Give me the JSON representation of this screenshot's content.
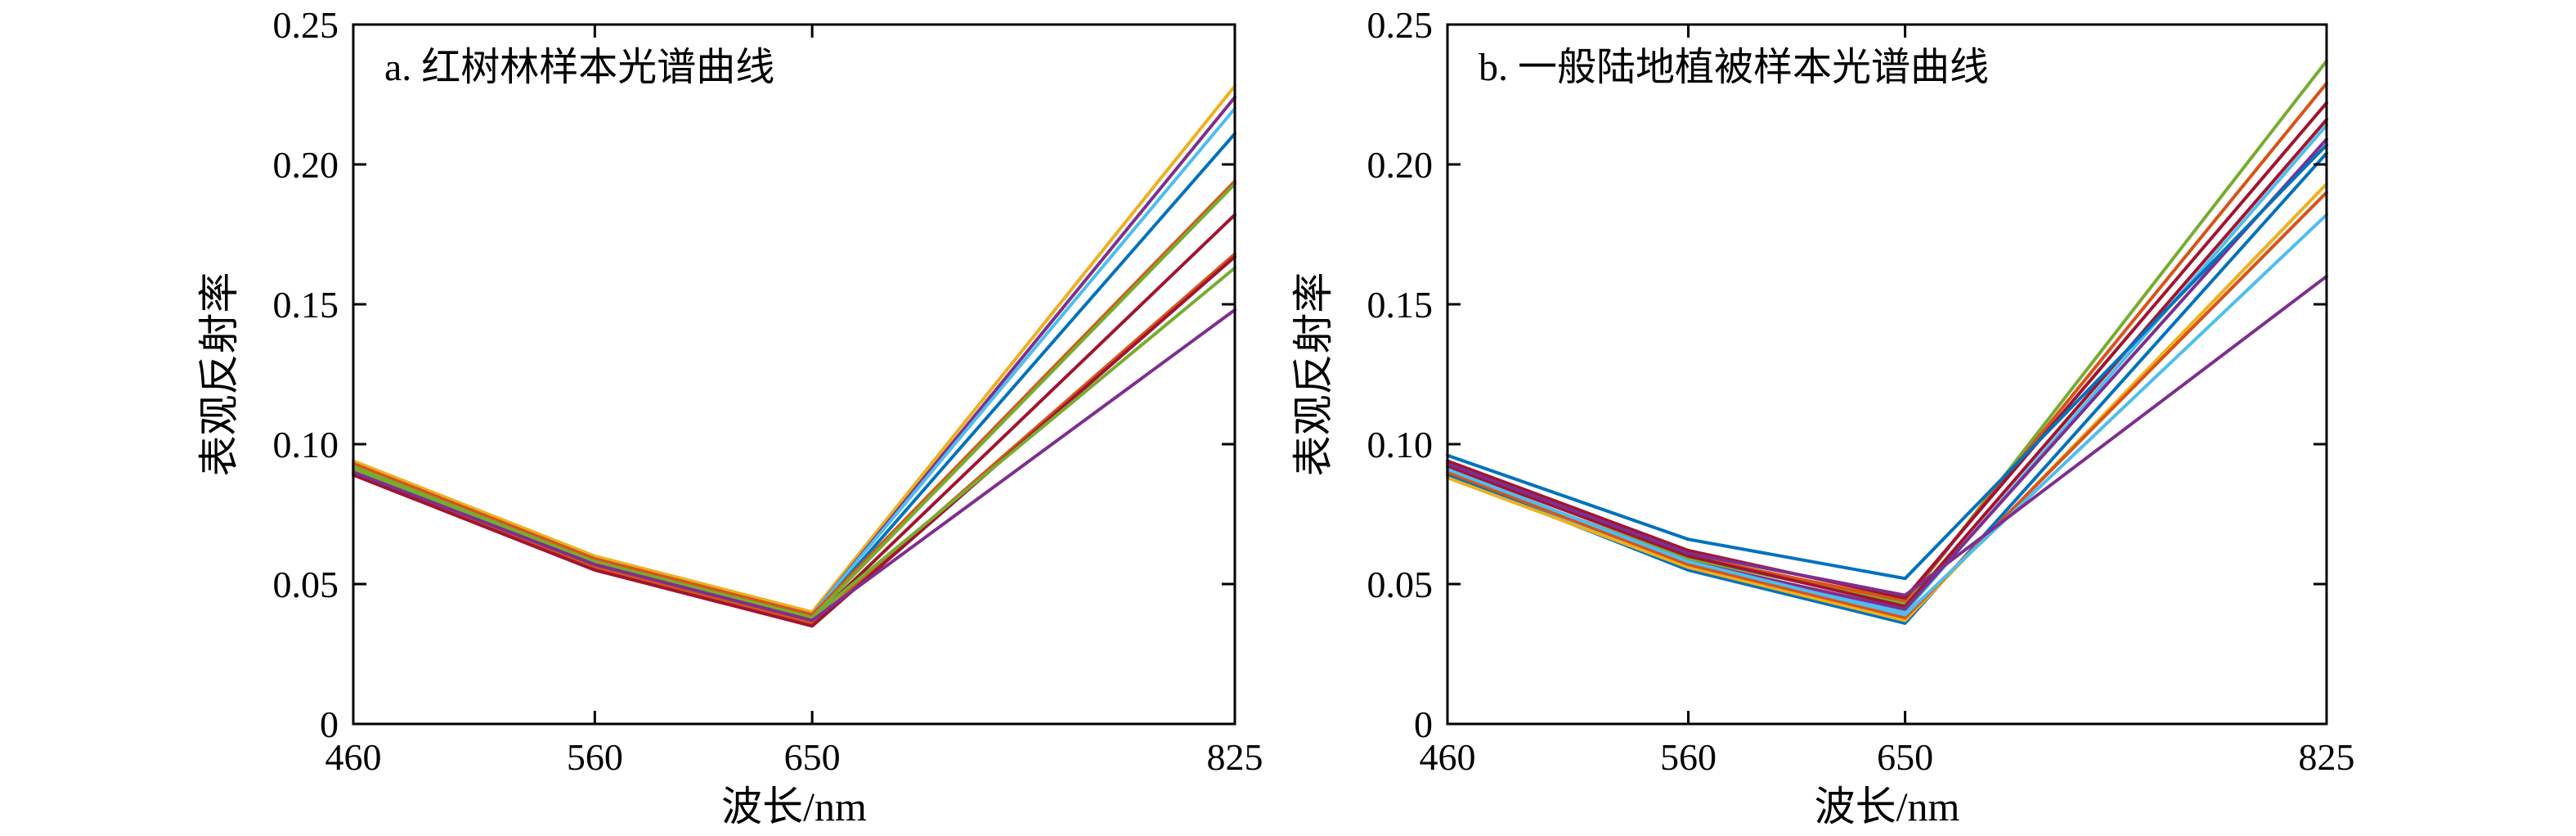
{
  "chart_data": [
    {
      "type": "line",
      "title": "a. 红树林样本光谱曲线",
      "xlabel": "波长/nm",
      "ylabel": "表观反射率",
      "x": [
        460,
        560,
        650,
        825
      ],
      "xticks": [
        "460",
        "560",
        "650",
        "825"
      ],
      "ylim": [
        0,
        0.25
      ],
      "yticks": [
        "0",
        "0.05",
        "0.10",
        "0.15",
        "0.20",
        "0.25"
      ],
      "grid": false,
      "series": [
        {
          "color": "#EDB120",
          "values": [
            0.094,
            0.06,
            0.04,
            0.228
          ]
        },
        {
          "color": "#7E2F8E",
          "values": [
            0.093,
            0.059,
            0.039,
            0.224
          ]
        },
        {
          "color": "#4DBEEE",
          "values": [
            0.092,
            0.058,
            0.039,
            0.22
          ]
        },
        {
          "color": "#0072BD",
          "values": [
            0.092,
            0.058,
            0.038,
            0.211
          ]
        },
        {
          "color": "#D95319",
          "values": [
            0.093,
            0.059,
            0.039,
            0.194
          ]
        },
        {
          "color": "#77AC30",
          "values": [
            0.092,
            0.058,
            0.038,
            0.193
          ]
        },
        {
          "color": "#A2142F",
          "values": [
            0.091,
            0.057,
            0.037,
            0.182
          ]
        },
        {
          "color": "#D95319",
          "values": [
            0.09,
            0.056,
            0.036,
            0.168
          ]
        },
        {
          "color": "#A2142F",
          "values": [
            0.089,
            0.055,
            0.035,
            0.167
          ]
        },
        {
          "color": "#77AC30",
          "values": [
            0.091,
            0.058,
            0.038,
            0.163
          ]
        },
        {
          "color": "#7E2F8E",
          "values": [
            0.09,
            0.057,
            0.037,
            0.148
          ]
        }
      ]
    },
    {
      "type": "line",
      "title": "b. 一般陆地植被样本光谱曲线",
      "xlabel": "波长/nm",
      "ylabel": "表观反射率",
      "x": [
        460,
        560,
        650,
        825
      ],
      "xticks": [
        "460",
        "560",
        "650",
        "825"
      ],
      "ylim": [
        0,
        0.25
      ],
      "yticks": [
        "0",
        "0.05",
        "0.10",
        "0.15",
        "0.20",
        "0.25"
      ],
      "grid": false,
      "series": [
        {
          "color": "#77AC30",
          "values": [
            0.09,
            0.059,
            0.043,
            0.237
          ]
        },
        {
          "color": "#D95319",
          "values": [
            0.093,
            0.06,
            0.044,
            0.229
          ]
        },
        {
          "color": "#A2142F",
          "values": [
            0.094,
            0.062,
            0.045,
            0.222
          ]
        },
        {
          "color": "#A2142F",
          "values": [
            0.092,
            0.06,
            0.042,
            0.216
          ]
        },
        {
          "color": "#4DBEEE",
          "values": [
            0.089,
            0.057,
            0.04,
            0.214
          ]
        },
        {
          "color": "#7E2F8E",
          "values": [
            0.091,
            0.058,
            0.041,
            0.209
          ]
        },
        {
          "color": "#0072BD",
          "values": [
            0.096,
            0.066,
            0.052,
            0.207
          ]
        },
        {
          "color": "#0072BD",
          "values": [
            0.089,
            0.055,
            0.036,
            0.204
          ]
        },
        {
          "color": "#EDB120",
          "values": [
            0.088,
            0.056,
            0.037,
            0.193
          ]
        },
        {
          "color": "#D95319",
          "values": [
            0.09,
            0.057,
            0.038,
            0.19
          ]
        },
        {
          "color": "#4DBEEE",
          "values": [
            0.091,
            0.058,
            0.039,
            0.182
          ]
        },
        {
          "color": "#7E2F8E",
          "values": [
            0.093,
            0.061,
            0.046,
            0.16
          ]
        }
      ]
    }
  ]
}
